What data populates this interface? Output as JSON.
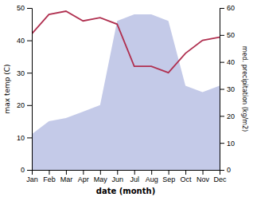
{
  "chart_data": {
    "type": "line",
    "categories": [
      "Jan",
      "Feb",
      "Mar",
      "Apr",
      "May",
      "Jun",
      "Jul",
      "Aug",
      "Sep",
      "Oct",
      "Nov",
      "Dec"
    ],
    "series": [
      {
        "type": "area",
        "color": "#b0b8e0",
        "values": [
          11,
          15,
          16,
          18,
          20,
          46,
          48,
          48,
          46,
          26,
          24,
          26
        ]
      },
      {
        "type": "line",
        "color": "#b03050",
        "values": [
          42,
          48,
          49,
          46,
          47,
          45,
          32,
          32,
          30,
          36,
          40,
          41
        ]
      }
    ],
    "xlabel": "date (month)",
    "ylabel": "max temp (C)",
    "y2label": "med. precipitation (kg/m2)",
    "ylim": [
      0,
      50
    ],
    "yticks": [
      0,
      10,
      20,
      30,
      40,
      50
    ],
    "y2lim": [
      0,
      60
    ],
    "y2ticks": [
      0,
      10,
      20,
      30,
      40,
      50,
      60
    ],
    "grid": false
  }
}
